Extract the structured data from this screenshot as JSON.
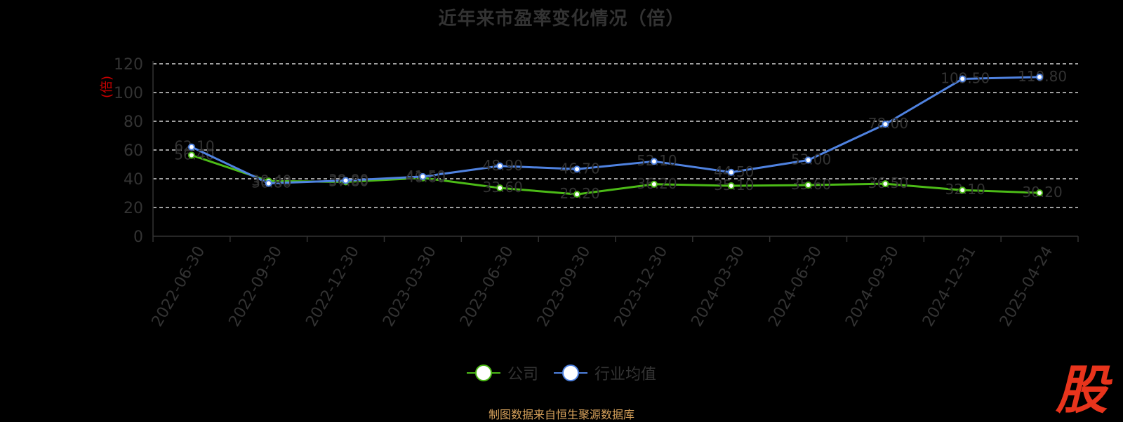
{
  "title": "近年来市盈率变化情况（倍）",
  "source_note": "制图数据来自恒生聚源数据库",
  "brand_logo": "股",
  "colors": {
    "company": "#4cbb17",
    "industry": "#4f82e0",
    "ylabel": "#cc0000",
    "axis": "#333333",
    "grid": "#ffffff"
  },
  "chart_data": {
    "type": "line",
    "title": "近年来市盈率变化情况（倍）",
    "ylabel": "(倍)",
    "ylim": [
      0,
      120
    ],
    "yticks": [
      0,
      20,
      40,
      60,
      80,
      100,
      120
    ],
    "grid": true,
    "legend_position": "bottom",
    "categories": [
      "2022-06-30",
      "2022-09-30",
      "2022-12-30",
      "2023-03-30",
      "2023-06-30",
      "2023-09-30",
      "2023-12-30",
      "2024-03-30",
      "2024-06-30",
      "2024-09-30",
      "2024-12-31",
      "2025-04-24"
    ],
    "series": [
      {
        "name": "公司",
        "values": [
          56.4,
          38.4,
          37.8,
          40.6,
          33.6,
          29.2,
          36.2,
          35.1,
          35.6,
          36.5,
          32.1,
          30.2
        ]
      },
      {
        "name": "行业均值",
        "values": [
          62.1,
          36.8,
          38.8,
          41.5,
          48.9,
          46.7,
          52.1,
          44.5,
          53.0,
          78.0,
          109.5,
          110.8
        ]
      }
    ]
  }
}
